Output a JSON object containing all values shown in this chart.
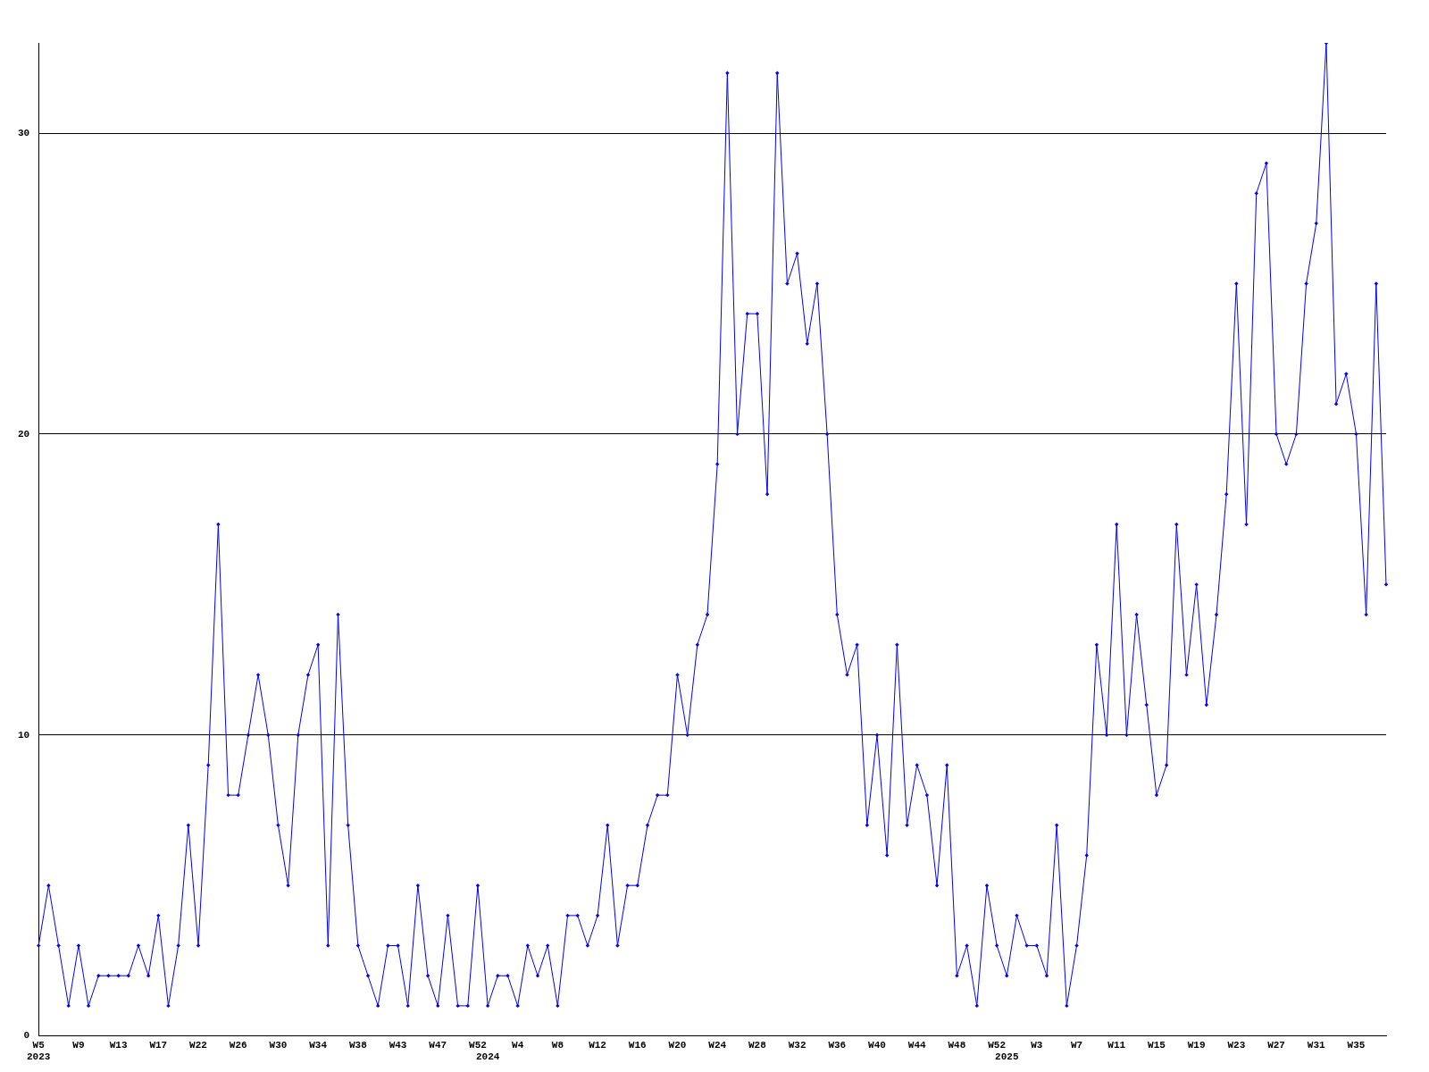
{
  "chart_data": {
    "type": "line",
    "categories": [
      "W5\n2023",
      null,
      null,
      null,
      "W9",
      null,
      null,
      null,
      "W13",
      null,
      null,
      null,
      "W17",
      null,
      null,
      null,
      "W22",
      null,
      null,
      null,
      "W26",
      null,
      null,
      null,
      "W30",
      null,
      null,
      null,
      "W34",
      null,
      null,
      null,
      "W38",
      null,
      null,
      null,
      "W43",
      null,
      null,
      null,
      "W47",
      null,
      null,
      null,
      "W52",
      "\n2024",
      null,
      null,
      "W4",
      null,
      null,
      null,
      "W8",
      null,
      null,
      null,
      "W12",
      null,
      null,
      null,
      "W16",
      null,
      null,
      null,
      "W20",
      null,
      null,
      null,
      "W24",
      null,
      null,
      null,
      "W28",
      null,
      null,
      null,
      "W32",
      null,
      null,
      null,
      "W36",
      null,
      null,
      null,
      "W40",
      null,
      null,
      null,
      "W44",
      null,
      null,
      null,
      "W48",
      null,
      null,
      null,
      "W52",
      "\n2025",
      null,
      null,
      "W3",
      null,
      null,
      null,
      "W7",
      null,
      null,
      null,
      "W11",
      null,
      null,
      null,
      "W15",
      null,
      null,
      null,
      "W19",
      null,
      null,
      null,
      "W23",
      null,
      null,
      null,
      "W27",
      null,
      null,
      null,
      "W31",
      null,
      null,
      null,
      "W35",
      null,
      null,
      null
    ],
    "series": [
      {
        "color": "#0000ff",
        "values": [
          3,
          5,
          3,
          1,
          3,
          1,
          2,
          2,
          2,
          2,
          3,
          2,
          4,
          1,
          3,
          7,
          3,
          9,
          17,
          8,
          8,
          10,
          12,
          10,
          7,
          5,
          10,
          12,
          13,
          3,
          14,
          7,
          3,
          2,
          1,
          3,
          3,
          1,
          5,
          2,
          1,
          4,
          1,
          1,
          5,
          1,
          2,
          2,
          1,
          3,
          2,
          3,
          1,
          4,
          4,
          3,
          4,
          7,
          3,
          5,
          5,
          7,
          8,
          8,
          12,
          10,
          13,
          14,
          19,
          32,
          20,
          24,
          24,
          18,
          32,
          25,
          26,
          23,
          25,
          20,
          14,
          12,
          13,
          7,
          10,
          6,
          13,
          7,
          9,
          8,
          5,
          9,
          2,
          3,
          1,
          5,
          3,
          2,
          4,
          3,
          3,
          2,
          7,
          1,
          3,
          6,
          13,
          10,
          17,
          10,
          14,
          11,
          8,
          9,
          17,
          12,
          15,
          11,
          14,
          18,
          25,
          17,
          28,
          29,
          20,
          19,
          20,
          25,
          27,
          33,
          21,
          22,
          20,
          14,
          25,
          15
        ]
      }
    ],
    "ylim": [
      0,
      33
    ],
    "yticks": [
      0,
      10,
      20,
      30
    ],
    "grid": "y",
    "marker": "diamond",
    "line_style": "solid",
    "legend": false
  }
}
